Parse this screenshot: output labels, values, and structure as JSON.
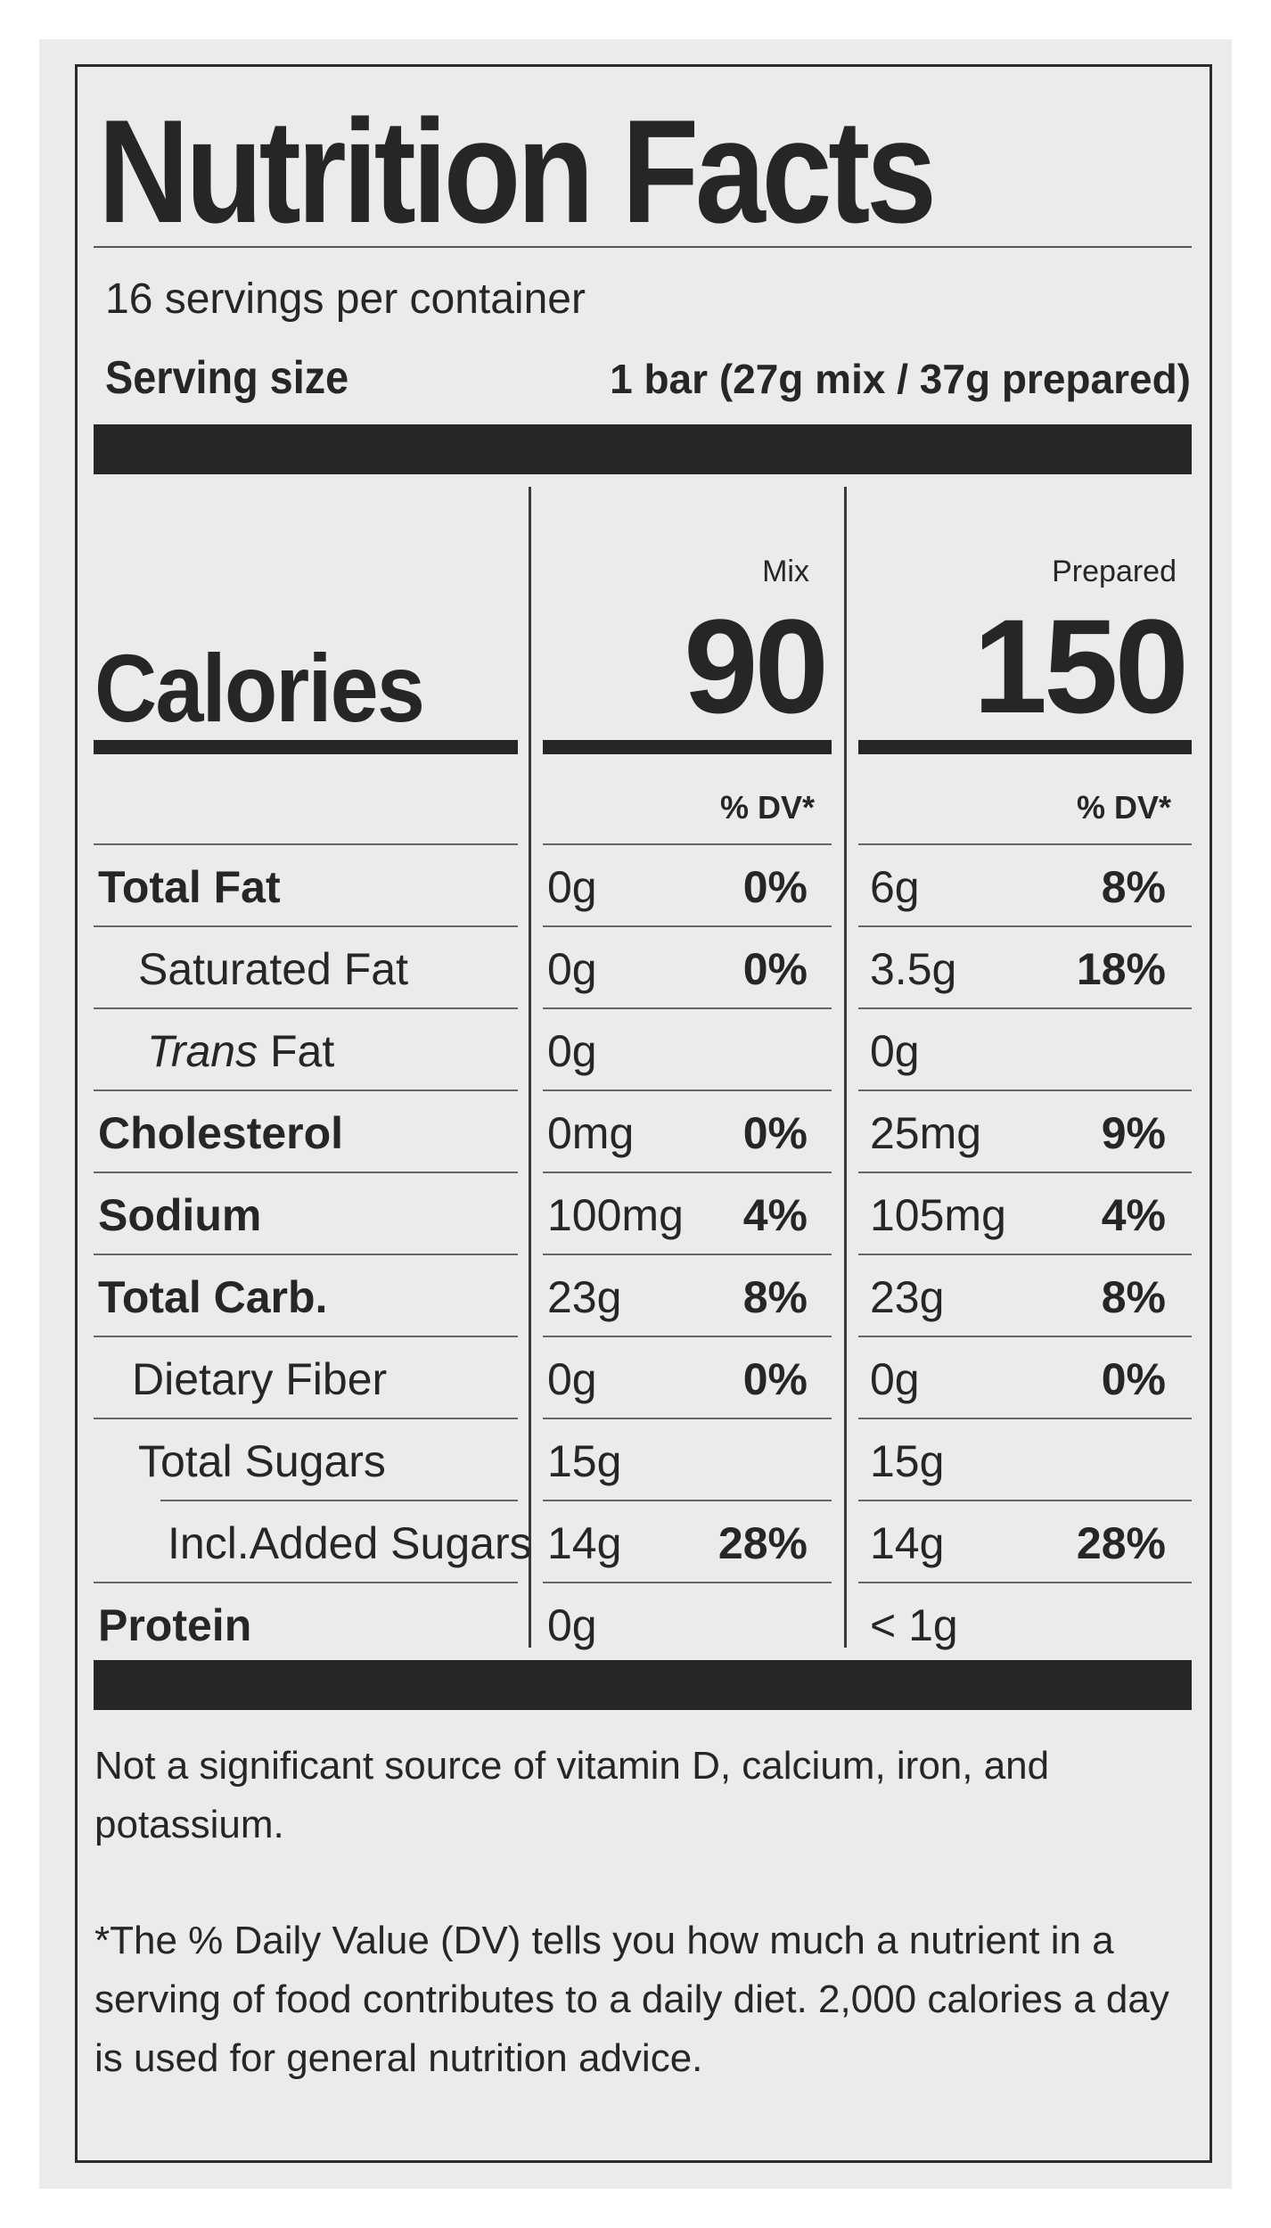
{
  "title": "Nutrition Facts",
  "servings_per_container": "16 servings per container",
  "serving_size_label": "Serving size",
  "serving_size_value": "1 bar (27g mix / 37g prepared)",
  "calories_label": "Calories",
  "columns": [
    {
      "header": "Mix",
      "calories": "90",
      "dv_header": "% DV*"
    },
    {
      "header": "Prepared",
      "calories": "150",
      "dv_header": "% DV*"
    }
  ],
  "rows": [
    {
      "name": "Total Fat",
      "mix_amount": "0g",
      "mix_dv": "0%",
      "prep_amount": "6g",
      "prep_dv": "8%"
    },
    {
      "name": "Saturated Fat",
      "mix_amount": "0g",
      "mix_dv": "0%",
      "prep_amount": "3.5g",
      "prep_dv": "18%"
    },
    {
      "name_prefix": "Trans",
      "name": " Fat",
      "mix_amount": "0g",
      "mix_dv": "",
      "prep_amount": "0g",
      "prep_dv": ""
    },
    {
      "name": "Cholesterol",
      "mix_amount": "0mg",
      "mix_dv": "0%",
      "prep_amount": "25mg",
      "prep_dv": "9%"
    },
    {
      "name": "Sodium",
      "mix_amount": "100mg",
      "mix_dv": "4%",
      "prep_amount": "105mg",
      "prep_dv": "4%"
    },
    {
      "name": "Total Carb.",
      "mix_amount": "23g",
      "mix_dv": "8%",
      "prep_amount": "23g",
      "prep_dv": "8%"
    },
    {
      "name": "Dietary Fiber",
      "mix_amount": "0g",
      "mix_dv": "0%",
      "prep_amount": "0g",
      "prep_dv": "0%"
    },
    {
      "name": "Total Sugars",
      "mix_amount": "15g",
      "mix_dv": "",
      "prep_amount": "15g",
      "prep_dv": ""
    },
    {
      "name": "Incl.Added Sugars",
      "mix_amount": "14g",
      "mix_dv": "28%",
      "prep_amount": "14g",
      "prep_dv": "28%"
    },
    {
      "name": "Protein",
      "mix_amount": "0g",
      "mix_dv": "",
      "prep_amount": "< 1g",
      "prep_dv": ""
    }
  ],
  "footnote_1": "Not a significant source of vitamin D, calcium, iron, and potassium.",
  "footnote_2": "*The % Daily Value (DV) tells you how much a nutrient in a serving of food contributes to a daily diet. 2,000 calories a day is used for general nutrition advice."
}
